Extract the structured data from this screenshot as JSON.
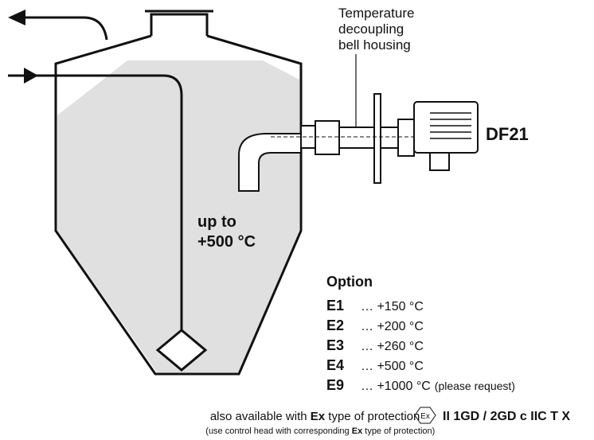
{
  "labels": {
    "housing": [
      "Temperature",
      "decoupling",
      "bell housing"
    ],
    "device": "DF21",
    "temp": [
      "up to",
      "+500 °C"
    ]
  },
  "options": {
    "title": "Option",
    "items": [
      {
        "code": "E1",
        "range": "… +150 °C"
      },
      {
        "code": "E2",
        "range": "… +200 °C"
      },
      {
        "code": "E3",
        "range": "… +260 °C"
      },
      {
        "code": "E4",
        "range": "… +500 °C"
      },
      {
        "code": "E9",
        "range": "… +1000 °C",
        "note": "(please request)"
      }
    ]
  },
  "footer": {
    "line1": [
      "also available with ",
      "Ex",
      " type of protection",
      "II 1GD / 2GD c IIC T X"
    ],
    "ex_symbol": "Ex",
    "line2": [
      "(use control head with corresponding ",
      "Ex",
      " type of protection)"
    ]
  }
}
